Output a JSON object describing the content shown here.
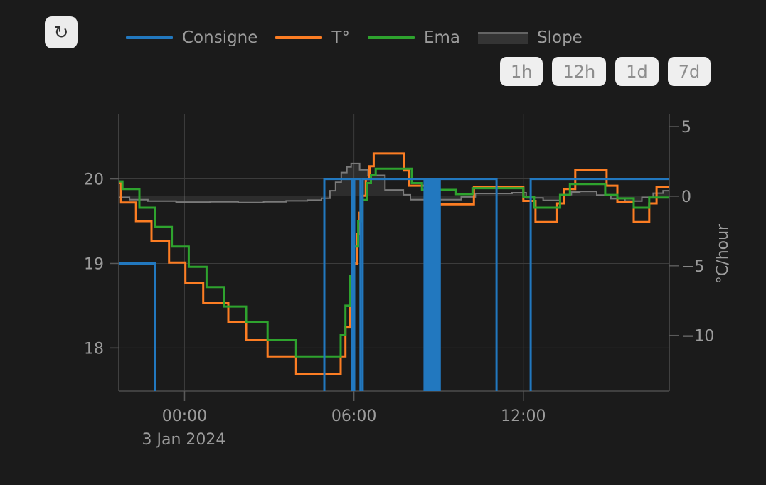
{
  "toolbar": {
    "refresh_icon": "↻"
  },
  "legend": {
    "items": [
      {
        "label": "Consigne",
        "color": "#2278bf",
        "type": "line"
      },
      {
        "label": "T°",
        "color": "#fc7d23",
        "type": "line"
      },
      {
        "label": "Ema",
        "color": "#2ea32e",
        "type": "line"
      },
      {
        "label": "Slope",
        "color": "#7a7a7a",
        "type": "area"
      }
    ]
  },
  "range_buttons": [
    {
      "label": "1h"
    },
    {
      "label": "12h"
    },
    {
      "label": "1d"
    },
    {
      "label": "7d"
    }
  ],
  "colors": {
    "background": "#1b1b1b",
    "grid": "#3c3c3c",
    "axis": "#4c4c4c",
    "tick": "#5a5a5a",
    "label": "#9c9c9c",
    "slope_fill": "rgba(170,170,170,0.13)",
    "slope_line": "#7a7a7a"
  },
  "chart_data": {
    "type": "line",
    "title": "",
    "x_axis": {
      "tick_values": [
        0,
        6,
        12
      ],
      "tick_labels": [
        "00:00",
        "06:00",
        "12:00"
      ],
      "date_label": "3 Jan 2024",
      "range_hours": [
        -2.33,
        17.17
      ],
      "note": "hours relative to midnight 3 Jan 2024; negative = evening of 2 Jan"
    },
    "y_left": {
      "tick_values": [
        20,
        19,
        18
      ],
      "tick_labels": [
        "20",
        "19",
        "18"
      ],
      "range": [
        17.49,
        20.77
      ]
    },
    "y_right": {
      "title": "°C/hour",
      "tick_values": [
        5,
        0,
        -5,
        -10
      ],
      "tick_labels": [
        "5",
        "0",
        "−5",
        "−10"
      ],
      "range": [
        -14.0,
        5.92
      ]
    },
    "grid": {
      "horizontal": true,
      "vertical": true
    },
    "legend_position": "top",
    "series": [
      {
        "name": "Slope",
        "axis": "right",
        "style": "step-area",
        "width": 2,
        "color": "#7a7a7a",
        "points": [
          [
            -2.33,
            -0.08
          ],
          [
            -1.95,
            -0.25
          ],
          [
            -1.3,
            -0.35
          ],
          [
            -0.3,
            -0.42
          ],
          [
            0.9,
            -0.4
          ],
          [
            1.9,
            -0.45
          ],
          [
            2.8,
            -0.4
          ],
          [
            3.6,
            -0.33
          ],
          [
            4.35,
            -0.28
          ],
          [
            4.85,
            -0.15
          ],
          [
            5.15,
            0.4
          ],
          [
            5.35,
            1.0
          ],
          [
            5.55,
            1.7
          ],
          [
            5.75,
            2.1
          ],
          [
            5.9,
            2.35
          ],
          [
            6.2,
            1.9
          ],
          [
            6.5,
            1.5
          ],
          [
            7.1,
            0.45
          ],
          [
            7.75,
            0.1
          ],
          [
            8.0,
            -0.25
          ],
          [
            9.8,
            -0.05
          ],
          [
            10.3,
            0.2
          ],
          [
            11.6,
            0.25
          ],
          [
            12.1,
            -0.12
          ],
          [
            12.7,
            -0.3
          ],
          [
            13.3,
            0.12
          ],
          [
            13.7,
            0.3
          ],
          [
            14.0,
            0.35
          ],
          [
            14.6,
            0.08
          ],
          [
            15.1,
            -0.18
          ],
          [
            15.6,
            -0.35
          ],
          [
            16.2,
            -0.08
          ],
          [
            16.6,
            0.22
          ],
          [
            16.95,
            0.4
          ]
        ]
      },
      {
        "name": "T°",
        "axis": "left",
        "style": "step",
        "width": 3,
        "color": "#fc7d23",
        "points": [
          [
            -2.33,
            19.95
          ],
          [
            -2.25,
            19.72
          ],
          [
            -1.72,
            19.5
          ],
          [
            -1.17,
            19.26
          ],
          [
            -0.55,
            19.01
          ],
          [
            0.03,
            18.77
          ],
          [
            0.66,
            18.53
          ],
          [
            1.55,
            18.31
          ],
          [
            2.18,
            18.1
          ],
          [
            2.94,
            17.9
          ],
          [
            3.95,
            17.69
          ],
          [
            5.53,
            17.9
          ],
          [
            5.7,
            18.25
          ],
          [
            5.85,
            18.6
          ],
          [
            6.0,
            19.0
          ],
          [
            6.1,
            19.35
          ],
          [
            6.2,
            19.6
          ],
          [
            6.3,
            19.8
          ],
          [
            6.42,
            20.0
          ],
          [
            6.55,
            20.15
          ],
          [
            6.7,
            20.3
          ],
          [
            7.78,
            20.1
          ],
          [
            7.95,
            19.92
          ],
          [
            8.6,
            19.7
          ],
          [
            10.25,
            19.9
          ],
          [
            12.0,
            19.74
          ],
          [
            12.43,
            19.49
          ],
          [
            13.2,
            19.71
          ],
          [
            13.44,
            19.88
          ],
          [
            13.84,
            20.11
          ],
          [
            14.95,
            19.92
          ],
          [
            15.33,
            19.73
          ],
          [
            15.91,
            19.49
          ],
          [
            16.46,
            19.71
          ],
          [
            16.72,
            19.9
          ]
        ]
      },
      {
        "name": "Ema",
        "axis": "left",
        "style": "step",
        "width": 3,
        "color": "#2ea32e",
        "points": [
          [
            -2.33,
            19.97
          ],
          [
            -2.2,
            19.88
          ],
          [
            -1.6,
            19.66
          ],
          [
            -1.05,
            19.43
          ],
          [
            -0.45,
            19.2
          ],
          [
            0.15,
            18.96
          ],
          [
            0.78,
            18.72
          ],
          [
            1.4,
            18.49
          ],
          [
            2.18,
            18.31
          ],
          [
            2.94,
            18.1
          ],
          [
            3.95,
            17.9
          ],
          [
            5.53,
            18.15
          ],
          [
            5.7,
            18.5
          ],
          [
            5.85,
            18.85
          ],
          [
            6.0,
            19.2
          ],
          [
            6.15,
            19.5
          ],
          [
            6.3,
            19.75
          ],
          [
            6.45,
            19.95
          ],
          [
            6.6,
            20.05
          ],
          [
            6.77,
            20.12
          ],
          [
            8.05,
            19.95
          ],
          [
            8.41,
            19.87
          ],
          [
            9.62,
            19.82
          ],
          [
            10.2,
            19.89
          ],
          [
            12.0,
            19.79
          ],
          [
            12.38,
            19.66
          ],
          [
            13.3,
            19.81
          ],
          [
            13.65,
            19.94
          ],
          [
            14.9,
            19.81
          ],
          [
            15.33,
            19.77
          ],
          [
            15.91,
            19.66
          ],
          [
            16.46,
            19.78
          ]
        ]
      },
      {
        "name": "Consigne",
        "axis": "left",
        "style": "step",
        "width": 3,
        "color": "#2278bf",
        "points": [
          [
            -2.33,
            19
          ],
          [
            -1.05,
            17
          ],
          [
            4.95,
            20
          ],
          [
            5.93,
            17
          ],
          [
            6.01,
            20
          ],
          [
            6.23,
            17
          ],
          [
            6.31,
            20
          ],
          [
            8.5,
            17
          ],
          [
            8.56,
            20
          ],
          [
            8.62,
            17
          ],
          [
            8.68,
            20
          ],
          [
            8.74,
            17
          ],
          [
            8.8,
            20
          ],
          [
            8.86,
            17
          ],
          [
            8.92,
            20
          ],
          [
            8.98,
            17
          ],
          [
            9.04,
            20
          ],
          [
            11.05,
            17
          ],
          [
            12.26,
            20
          ]
        ]
      }
    ]
  }
}
